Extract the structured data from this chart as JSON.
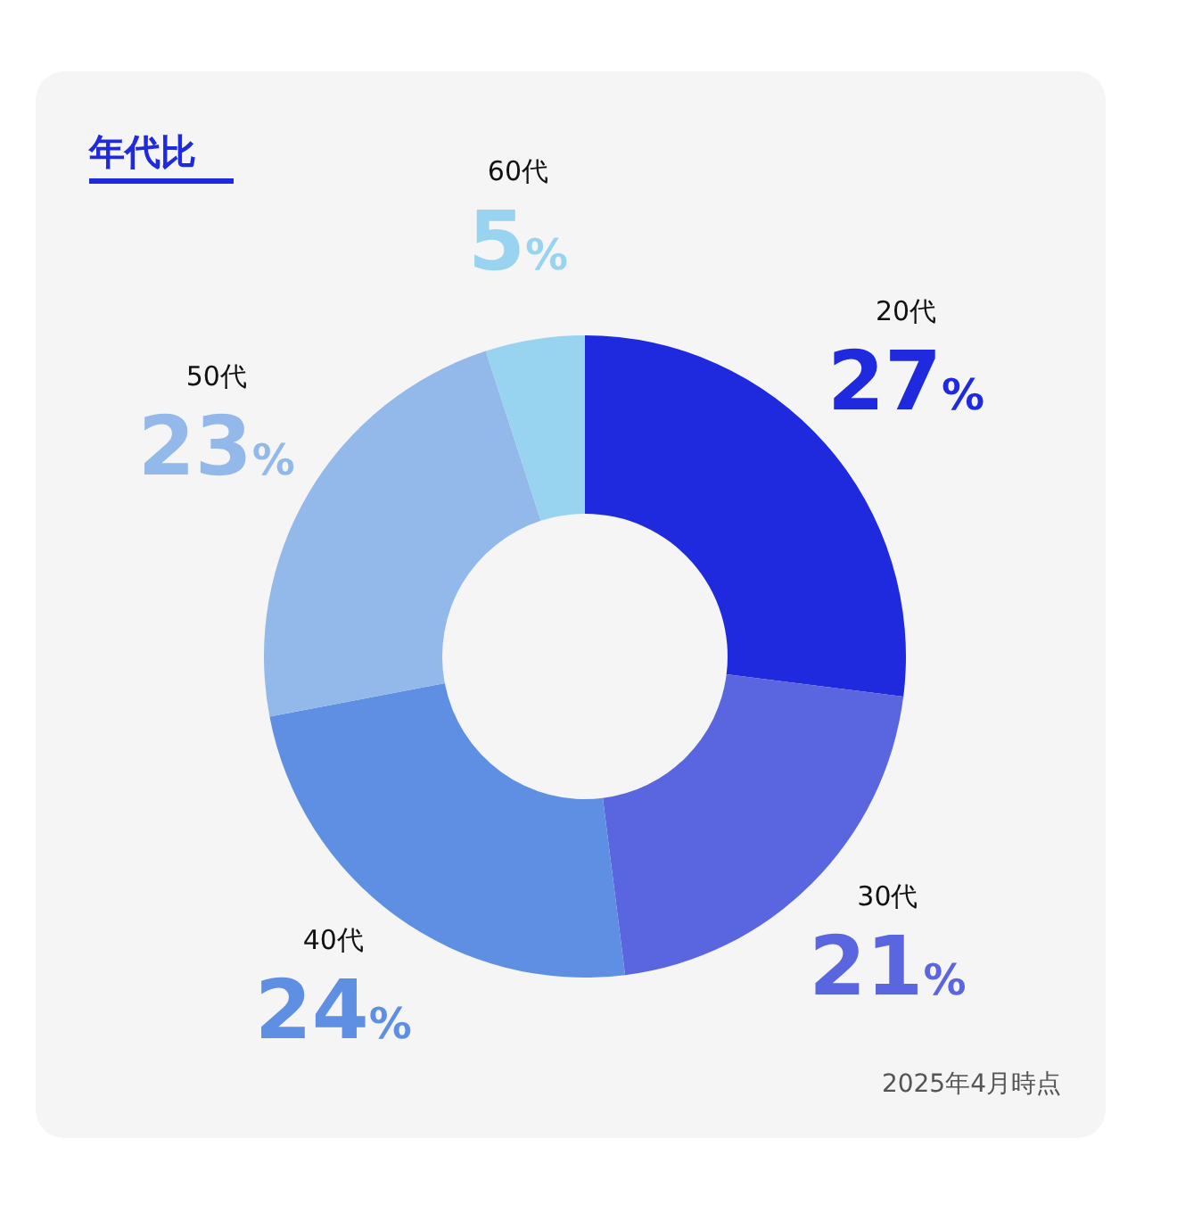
{
  "chart_data": {
    "type": "donut",
    "title": "年代比",
    "categories": [
      "20代",
      "30代",
      "40代",
      "50代",
      "60代"
    ],
    "values": [
      27,
      21,
      24,
      23,
      5
    ],
    "value_labels": [
      "27%",
      "21%",
      "24%",
      "23%",
      "5%"
    ],
    "colors": [
      "#1f2ade",
      "#5a65e0",
      "#5f8fe3",
      "#92b9e9",
      "#98d4f0"
    ],
    "annotations": [
      "2025年4月時点"
    ]
  }
}
